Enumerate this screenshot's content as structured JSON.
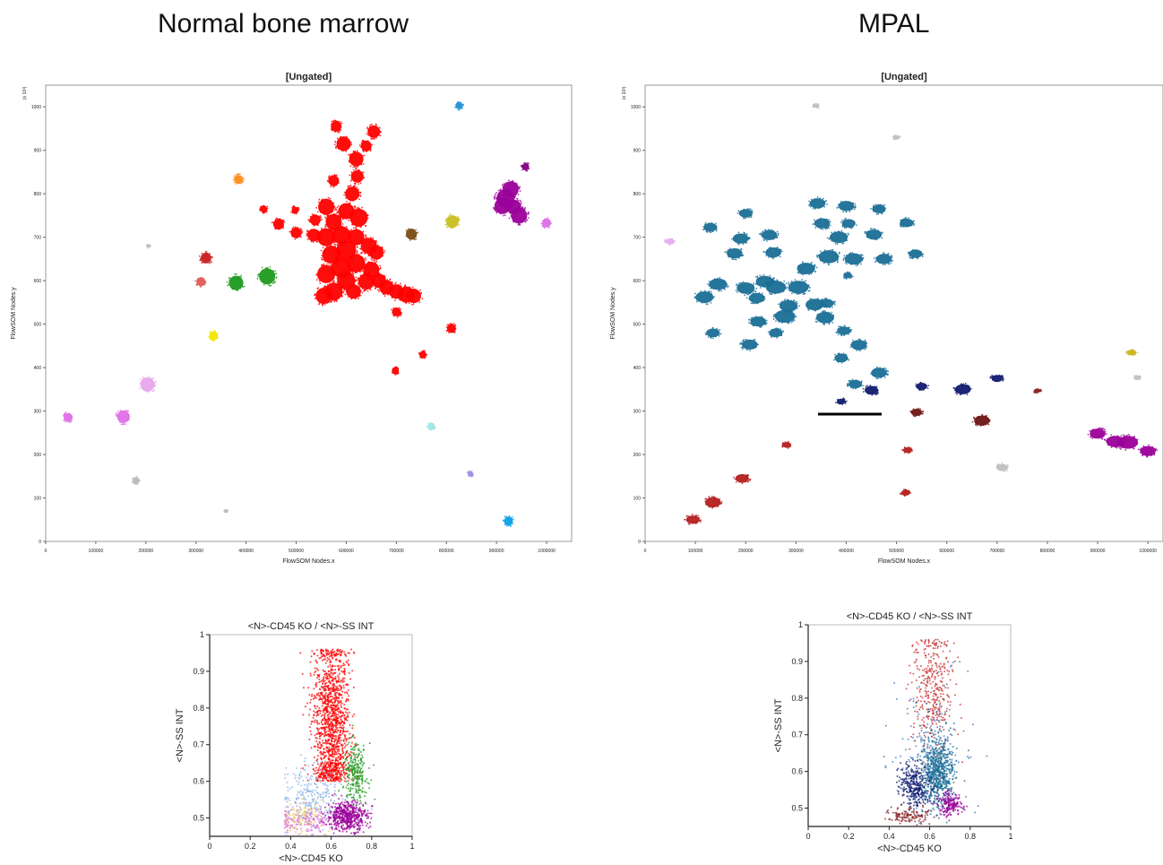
{
  "titles": {
    "left": "Normal bone marrow",
    "right": "MPAL"
  },
  "chart_data": [
    {
      "id": "normal_som",
      "type": "scatter",
      "title": "[Ungated]",
      "xlabel": "FlowSOM Nodes.x",
      "ylabel": "FlowSOM Nodes.y",
      "y_exponent_label": "(x 10³)",
      "xlim": [
        0,
        1050000
      ],
      "ylim": [
        0,
        1050
      ],
      "xticks": [
        0,
        100000,
        200000,
        300000,
        400000,
        500000,
        600000,
        700000,
        800000,
        900000,
        1000000
      ],
      "yticks": [
        0,
        100,
        200,
        300,
        400,
        500,
        600,
        700,
        800,
        900,
        1000
      ],
      "points": [
        {
          "x": 580000,
          "y": 955,
          "s": 6,
          "c": "#ff0000"
        },
        {
          "x": 595000,
          "y": 915,
          "s": 8,
          "c": "#ff0000"
        },
        {
          "x": 655000,
          "y": 943,
          "s": 7,
          "c": "#ff0000"
        },
        {
          "x": 640000,
          "y": 910,
          "s": 6,
          "c": "#ff0000"
        },
        {
          "x": 620000,
          "y": 880,
          "s": 8,
          "c": "#ff0000"
        },
        {
          "x": 622000,
          "y": 840,
          "s": 7,
          "c": "#ff0000"
        },
        {
          "x": 575000,
          "y": 830,
          "s": 6,
          "c": "#ff0000"
        },
        {
          "x": 612000,
          "y": 800,
          "s": 8,
          "c": "#ff0000"
        },
        {
          "x": 560000,
          "y": 770,
          "s": 9,
          "c": "#ff0000"
        },
        {
          "x": 600000,
          "y": 760,
          "s": 9,
          "c": "#ff0000"
        },
        {
          "x": 625000,
          "y": 745,
          "s": 10,
          "c": "#ff0000"
        },
        {
          "x": 575000,
          "y": 735,
          "s": 9,
          "c": "#ff0000"
        },
        {
          "x": 538000,
          "y": 740,
          "s": 6,
          "c": "#ff0000"
        },
        {
          "x": 498000,
          "y": 762,
          "s": 4,
          "c": "#ff0000"
        },
        {
          "x": 435000,
          "y": 765,
          "s": 4,
          "c": "#ff0000"
        },
        {
          "x": 465000,
          "y": 730,
          "s": 6,
          "c": "#ff0000"
        },
        {
          "x": 500000,
          "y": 710,
          "s": 6,
          "c": "#ff0000"
        },
        {
          "x": 535000,
          "y": 705,
          "s": 7,
          "c": "#ff0000"
        },
        {
          "x": 560000,
          "y": 700,
          "s": 10,
          "c": "#ff0000"
        },
        {
          "x": 590000,
          "y": 705,
          "s": 10,
          "c": "#ff0000"
        },
        {
          "x": 620000,
          "y": 700,
          "s": 9,
          "c": "#ff0000"
        },
        {
          "x": 600000,
          "y": 670,
          "s": 11,
          "c": "#ff0000"
        },
        {
          "x": 645000,
          "y": 680,
          "s": 9,
          "c": "#ff0000"
        },
        {
          "x": 660000,
          "y": 665,
          "s": 8,
          "c": "#ff0000"
        },
        {
          "x": 570000,
          "y": 660,
          "s": 10,
          "c": "#ff0000"
        },
        {
          "x": 620000,
          "y": 640,
          "s": 10,
          "c": "#ff0000"
        },
        {
          "x": 590000,
          "y": 630,
          "s": 11,
          "c": "#ff0000"
        },
        {
          "x": 650000,
          "y": 625,
          "s": 9,
          "c": "#ff0000"
        },
        {
          "x": 560000,
          "y": 615,
          "s": 10,
          "c": "#ff0000"
        },
        {
          "x": 600000,
          "y": 600,
          "s": 10,
          "c": "#ff0000"
        },
        {
          "x": 640000,
          "y": 598,
          "s": 9,
          "c": "#ff0000"
        },
        {
          "x": 665000,
          "y": 600,
          "s": 8,
          "c": "#ff0000"
        },
        {
          "x": 680000,
          "y": 585,
          "s": 8,
          "c": "#ff0000"
        },
        {
          "x": 700000,
          "y": 575,
          "s": 8,
          "c": "#ff0000"
        },
        {
          "x": 720000,
          "y": 568,
          "s": 9,
          "c": "#ff0000"
        },
        {
          "x": 735000,
          "y": 565,
          "s": 8,
          "c": "#ff0000"
        },
        {
          "x": 575000,
          "y": 575,
          "s": 10,
          "c": "#ff0000"
        },
        {
          "x": 555000,
          "y": 565,
          "s": 9,
          "c": "#ff0000"
        },
        {
          "x": 615000,
          "y": 575,
          "s": 8,
          "c": "#ff0000"
        },
        {
          "x": 700000,
          "y": 528,
          "s": 5,
          "c": "#ff0000"
        },
        {
          "x": 810000,
          "y": 490,
          "s": 5,
          "c": "#ff0000"
        },
        {
          "x": 753000,
          "y": 430,
          "s": 4,
          "c": "#ff0000"
        },
        {
          "x": 698000,
          "y": 393,
          "s": 4,
          "c": "#ff0000"
        },
        {
          "x": 320000,
          "y": 652,
          "s": 6,
          "c": "#c81e1e"
        },
        {
          "x": 310000,
          "y": 598,
          "s": 5,
          "c": "#e05a5a"
        },
        {
          "x": 385000,
          "y": 833,
          "s": 5,
          "c": "#ff8c1a"
        },
        {
          "x": 380000,
          "y": 595,
          "s": 8,
          "c": "#1e9a1e"
        },
        {
          "x": 442000,
          "y": 610,
          "s": 9,
          "c": "#1e9a1e"
        },
        {
          "x": 335000,
          "y": 473,
          "s": 5,
          "c": "#f2e600"
        },
        {
          "x": 730000,
          "y": 707,
          "s": 6,
          "c": "#7a4a12"
        },
        {
          "x": 812000,
          "y": 736,
          "s": 7,
          "c": "#c8be1e"
        },
        {
          "x": 825000,
          "y": 1003,
          "s": 4,
          "c": "#1e90d8"
        },
        {
          "x": 958000,
          "y": 862,
          "s": 4,
          "c": "#800080"
        },
        {
          "x": 918000,
          "y": 790,
          "s": 10,
          "c": "#9a009a"
        },
        {
          "x": 928000,
          "y": 810,
          "s": 9,
          "c": "#9a009a"
        },
        {
          "x": 935000,
          "y": 770,
          "s": 8,
          "c": "#9a009a"
        },
        {
          "x": 945000,
          "y": 750,
          "s": 9,
          "c": "#9a009a"
        },
        {
          "x": 912000,
          "y": 772,
          "s": 9,
          "c": "#9a009a"
        },
        {
          "x": 1000000,
          "y": 733,
          "s": 5,
          "c": "#dc6ee6"
        },
        {
          "x": 205000,
          "y": 680,
          "s": 2,
          "c": "#bbbbbb"
        },
        {
          "x": 203000,
          "y": 361,
          "s": 8,
          "c": "#e6a6ec"
        },
        {
          "x": 155000,
          "y": 287,
          "s": 7,
          "c": "#e06ee6"
        },
        {
          "x": 45000,
          "y": 285,
          "s": 5,
          "c": "#e06ee6"
        },
        {
          "x": 180000,
          "y": 140,
          "s": 4,
          "c": "#bbbbbb"
        },
        {
          "x": 360000,
          "y": 70,
          "s": 2,
          "c": "#bbbbbb"
        },
        {
          "x": 770000,
          "y": 265,
          "s": 4,
          "c": "#a0e6e6"
        },
        {
          "x": 848000,
          "y": 155,
          "s": 3,
          "c": "#9a8ce6"
        },
        {
          "x": 924000,
          "y": 47,
          "s": 5,
          "c": "#0aa0e6"
        }
      ]
    },
    {
      "id": "mpal_som",
      "type": "scatter",
      "title": "[Ungated]",
      "xlabel": "FlowSOM Nodes.x",
      "ylabel": "FlowSOM Nodes.y",
      "y_exponent_label": "(x 10³)",
      "xlim": [
        0,
        1030000
      ],
      "ylim": [
        0,
        1050
      ],
      "xticks": [
        0,
        100000,
        200000,
        300000,
        400000,
        500000,
        600000,
        700000,
        800000,
        900000,
        1000000
      ],
      "yticks": [
        0,
        100,
        200,
        300,
        400,
        500,
        600,
        700,
        800,
        900,
        1000
      ],
      "points": [
        {
          "x": 340000,
          "y": 1003,
          "s": 3,
          "c": "#c0c0c0"
        },
        {
          "x": 500000,
          "y": 930,
          "s": 3,
          "c": "#c0c0c0"
        },
        {
          "x": 50000,
          "y": 690,
          "s": 4,
          "c": "#e6aaf0"
        },
        {
          "x": 343000,
          "y": 778,
          "s": 7,
          "c": "#1a6e96"
        },
        {
          "x": 400000,
          "y": 772,
          "s": 7,
          "c": "#1a6e96"
        },
        {
          "x": 465000,
          "y": 765,
          "s": 6,
          "c": "#1a6e96"
        },
        {
          "x": 200000,
          "y": 755,
          "s": 6,
          "c": "#1a6e96"
        },
        {
          "x": 352000,
          "y": 732,
          "s": 7,
          "c": "#1a6e96"
        },
        {
          "x": 405000,
          "y": 732,
          "s": 6,
          "c": "#1a6e96"
        },
        {
          "x": 520000,
          "y": 733,
          "s": 6,
          "c": "#1a6e96"
        },
        {
          "x": 130000,
          "y": 723,
          "s": 6,
          "c": "#1a6e96"
        },
        {
          "x": 247000,
          "y": 705,
          "s": 7,
          "c": "#1a6e96"
        },
        {
          "x": 385000,
          "y": 700,
          "s": 8,
          "c": "#1a6e96"
        },
        {
          "x": 455000,
          "y": 706,
          "s": 7,
          "c": "#1a6e96"
        },
        {
          "x": 190000,
          "y": 697,
          "s": 7,
          "c": "#1a6e96"
        },
        {
          "x": 178000,
          "y": 663,
          "s": 7,
          "c": "#1a6e96"
        },
        {
          "x": 255000,
          "y": 665,
          "s": 7,
          "c": "#1a6e96"
        },
        {
          "x": 365000,
          "y": 655,
          "s": 9,
          "c": "#1a6e96"
        },
        {
          "x": 415000,
          "y": 650,
          "s": 8,
          "c": "#1a6e96"
        },
        {
          "x": 475000,
          "y": 650,
          "s": 7,
          "c": "#1a6e96"
        },
        {
          "x": 538000,
          "y": 662,
          "s": 6,
          "c": "#1a6e96"
        },
        {
          "x": 320000,
          "y": 628,
          "s": 8,
          "c": "#1a6e96"
        },
        {
          "x": 403000,
          "y": 612,
          "s": 4,
          "c": "#1a6e96"
        },
        {
          "x": 145000,
          "y": 592,
          "s": 8,
          "c": "#1a6e96"
        },
        {
          "x": 200000,
          "y": 583,
          "s": 8,
          "c": "#1a6e96"
        },
        {
          "x": 238000,
          "y": 598,
          "s": 8,
          "c": "#1a6e96"
        },
        {
          "x": 260000,
          "y": 585,
          "s": 9,
          "c": "#1a6e96"
        },
        {
          "x": 305000,
          "y": 585,
          "s": 9,
          "c": "#1a6e96"
        },
        {
          "x": 118000,
          "y": 562,
          "s": 8,
          "c": "#1a6e96"
        },
        {
          "x": 222000,
          "y": 560,
          "s": 7,
          "c": "#1a6e96"
        },
        {
          "x": 285000,
          "y": 542,
          "s": 8,
          "c": "#1a6e96"
        },
        {
          "x": 337000,
          "y": 545,
          "s": 8,
          "c": "#1a6e96"
        },
        {
          "x": 362000,
          "y": 548,
          "s": 6,
          "c": "#1a6e96"
        },
        {
          "x": 278000,
          "y": 518,
          "s": 9,
          "c": "#1a6e96"
        },
        {
          "x": 358000,
          "y": 515,
          "s": 8,
          "c": "#1a6e96"
        },
        {
          "x": 225000,
          "y": 506,
          "s": 7,
          "c": "#1a6e96"
        },
        {
          "x": 135000,
          "y": 480,
          "s": 6,
          "c": "#1a6e96"
        },
        {
          "x": 260000,
          "y": 480,
          "s": 6,
          "c": "#1a6e96"
        },
        {
          "x": 395000,
          "y": 485,
          "s": 6,
          "c": "#1a6e96"
        },
        {
          "x": 208000,
          "y": 453,
          "s": 7,
          "c": "#1a6e96"
        },
        {
          "x": 425000,
          "y": 452,
          "s": 7,
          "c": "#1a6e96"
        },
        {
          "x": 390000,
          "y": 422,
          "s": 6,
          "c": "#1a6e96"
        },
        {
          "x": 465000,
          "y": 388,
          "s": 7,
          "c": "#1a6e96"
        },
        {
          "x": 418000,
          "y": 362,
          "s": 6,
          "c": "#1a6e96"
        },
        {
          "x": 450000,
          "y": 348,
          "s": 6,
          "c": "#101a6e"
        },
        {
          "x": 390000,
          "y": 322,
          "s": 4,
          "c": "#101a6e"
        },
        {
          "x": 550000,
          "y": 357,
          "s": 5,
          "c": "#101a6e"
        },
        {
          "x": 632000,
          "y": 350,
          "s": 7,
          "c": "#101a6e"
        },
        {
          "x": 700000,
          "y": 375,
          "s": 5,
          "c": "#101a6e"
        },
        {
          "x": 780000,
          "y": 347,
          "s": 3,
          "c": "#8a1e1e"
        },
        {
          "x": 540000,
          "y": 297,
          "s": 5,
          "c": "#6e1414"
        },
        {
          "x": 670000,
          "y": 278,
          "s": 7,
          "c": "#6e1414"
        },
        {
          "x": 282000,
          "y": 222,
          "s": 4,
          "c": "#b41e1e"
        },
        {
          "x": 522000,
          "y": 210,
          "s": 4,
          "c": "#b41e1e"
        },
        {
          "x": 193000,
          "y": 145,
          "s": 6,
          "c": "#b41e1e"
        },
        {
          "x": 518000,
          "y": 112,
          "s": 4,
          "c": "#b41e1e"
        },
        {
          "x": 135000,
          "y": 90,
          "s": 7,
          "c": "#b41e1e"
        },
        {
          "x": 95000,
          "y": 50,
          "s": 6,
          "c": "#b41e1e"
        },
        {
          "x": 968000,
          "y": 435,
          "s": 4,
          "c": "#c8b41e"
        },
        {
          "x": 980000,
          "y": 377,
          "s": 3,
          "c": "#c0c0c0"
        },
        {
          "x": 710000,
          "y": 170,
          "s": 5,
          "c": "#c0c0c0"
        },
        {
          "x": 900000,
          "y": 248,
          "s": 7,
          "c": "#9a009a"
        },
        {
          "x": 935000,
          "y": 230,
          "s": 8,
          "c": "#9a009a"
        },
        {
          "x": 960000,
          "y": 228,
          "s": 9,
          "c": "#9a009a"
        },
        {
          "x": 1000000,
          "y": 208,
          "s": 7,
          "c": "#9a009a"
        }
      ]
    },
    {
      "id": "normal_cd45",
      "type": "scatter",
      "title": "<N>-CD45 KO / <N>-SS INT",
      "xlabel": "<N>-CD45 KO",
      "ylabel": "<N>-SS INT",
      "xlim": [
        0,
        1
      ],
      "ylim": [
        0.45,
        1
      ],
      "xticks": [
        0,
        0.2,
        0.4,
        0.6,
        0.8,
        1
      ],
      "ytick_labels": [
        "0.5",
        "0.6",
        "0.7",
        "0.8",
        "0.9",
        "1"
      ],
      "clouds": [
        {
          "cx": 0.6,
          "cy": 0.75,
          "sx": 0.045,
          "sy": 0.12,
          "n": 1400,
          "c": "#ff0000",
          "min_y": 0.6
        },
        {
          "cx": 0.72,
          "cy": 0.62,
          "sx": 0.03,
          "sy": 0.04,
          "n": 260,
          "c": "#1e9a1e"
        },
        {
          "cx": 0.5,
          "cy": 0.56,
          "sx": 0.07,
          "sy": 0.04,
          "n": 250,
          "c": "#8cb4e6"
        },
        {
          "cx": 0.45,
          "cy": 0.5,
          "sx": 0.05,
          "sy": 0.02,
          "n": 140,
          "c": "#e6c864"
        },
        {
          "cx": 0.5,
          "cy": 0.49,
          "sx": 0.08,
          "sy": 0.02,
          "n": 160,
          "c": "#dc6ee6"
        },
        {
          "cx": 0.68,
          "cy": 0.505,
          "sx": 0.05,
          "sy": 0.02,
          "n": 520,
          "c": "#9a009a"
        }
      ]
    },
    {
      "id": "mpal_cd45",
      "type": "scatter",
      "title": "<N>-CD45 KO / <N>-SS INT",
      "xlabel": "<N>-CD45 KO",
      "ylabel": "<N>-SS INT",
      "xlim": [
        0,
        1
      ],
      "ylim": [
        0.45,
        1
      ],
      "xticks": [
        0,
        0.2,
        0.4,
        0.6,
        0.8,
        1
      ],
      "ytick_labels": [
        "0.5",
        "0.6",
        "0.7",
        "0.8",
        "0.9",
        "1"
      ],
      "clouds": [
        {
          "cx": 0.62,
          "cy": 0.82,
          "sx": 0.05,
          "sy": 0.09,
          "n": 380,
          "c": "#c83232"
        },
        {
          "cx": 0.64,
          "cy": 0.6,
          "sx": 0.04,
          "sy": 0.045,
          "n": 700,
          "c": "#1a6e96"
        },
        {
          "cx": 0.53,
          "cy": 0.56,
          "sx": 0.04,
          "sy": 0.03,
          "n": 320,
          "c": "#101a6e"
        },
        {
          "cx": 0.5,
          "cy": 0.48,
          "sx": 0.05,
          "sy": 0.01,
          "n": 120,
          "c": "#8a1e1e"
        },
        {
          "cx": 0.7,
          "cy": 0.51,
          "sx": 0.03,
          "sy": 0.015,
          "n": 180,
          "c": "#9a009a"
        },
        {
          "cx": 0.6,
          "cy": 0.65,
          "sx": 0.1,
          "sy": 0.1,
          "n": 160,
          "c": "#3c78c8"
        }
      ]
    }
  ]
}
